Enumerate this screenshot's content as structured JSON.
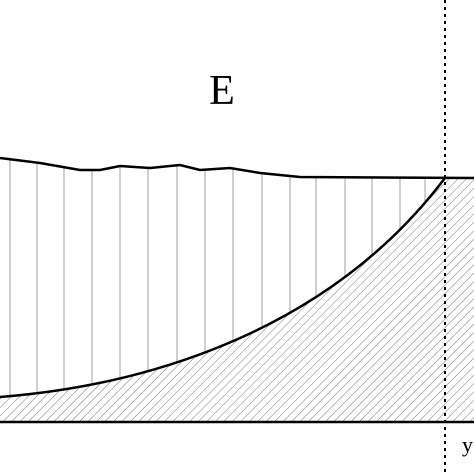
{
  "labels": {
    "region": "E",
    "axis": "y"
  }
}
